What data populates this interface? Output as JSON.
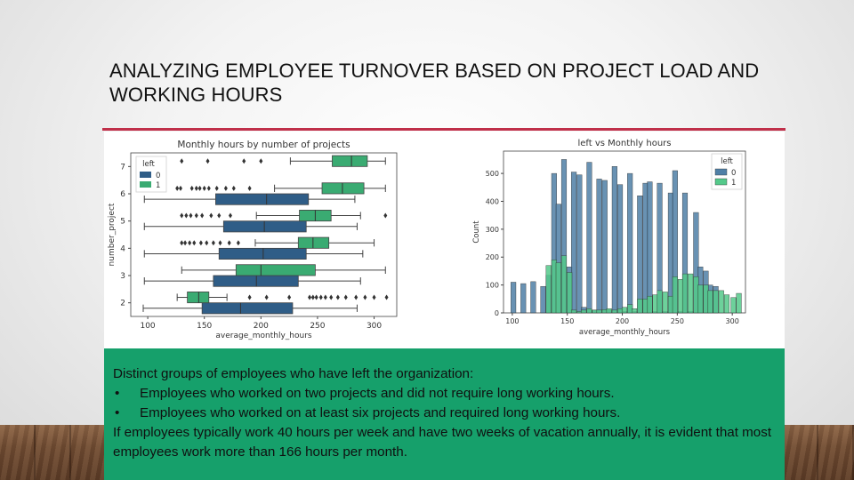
{
  "slide": {
    "title": "ANALYZING EMPLOYEE TURNOVER BASED ON PROJECT LOAD AND WORKING HOURS",
    "accent_color": "#c0304a",
    "box_color": "#16a06b",
    "intro": "Distinct groups of employees who have left the organization:",
    "bullets": [
      "Employees who worked on two projects and did not require long working hours.",
      "Employees who worked on at least six projects and required long working hours."
    ],
    "conclusion": "If employees typically work 40 hours per week and have two weeks of vacation annually, it is evident that most employees work more than 166 hours per month.",
    "bullet_glyph": "•"
  },
  "chart_data": [
    {
      "type": "box",
      "orientation": "horizontal",
      "title": "Monthly hours by number of projects",
      "xlabel": "average_monthly_hours",
      "ylabel": "number_project",
      "xlim": [
        85,
        320
      ],
      "xticks": [
        100,
        150,
        200,
        250,
        300
      ],
      "categories": [
        7,
        6,
        5,
        4,
        3,
        2
      ],
      "legend": {
        "title": "left",
        "position": "top-left",
        "entries": [
          "0",
          "1"
        ]
      },
      "colors": {
        "0": "#2f5d87",
        "1": "#3aab72"
      },
      "series": [
        {
          "name": "0",
          "boxes": [
            {
              "category": 6,
              "whisker_low": 97,
              "q1": 160,
              "median": 205,
              "q3": 242,
              "whisker_high": 283
            },
            {
              "category": 5,
              "whisker_low": 97,
              "q1": 167,
              "median": 203,
              "q3": 240,
              "whisker_high": 285
            },
            {
              "category": 4,
              "whisker_low": 97,
              "q1": 163,
              "median": 202,
              "q3": 240,
              "whisker_high": 290
            },
            {
              "category": 3,
              "whisker_low": 97,
              "q1": 158,
              "median": 196,
              "q3": 233,
              "whisker_high": 288
            },
            {
              "category": 2,
              "whisker_low": 96,
              "q1": 148,
              "median": 182,
              "q3": 228,
              "whisker_high": 285
            }
          ]
        },
        {
          "name": "1",
          "boxes": [
            {
              "category": 7,
              "whisker_low": 226,
              "q1": 263,
              "median": 280,
              "q3": 294,
              "whisker_high": 310,
              "outliers": [
                130,
                153,
                185,
                200
              ]
            },
            {
              "category": 6,
              "whisker_low": 212,
              "q1": 254,
              "median": 272,
              "q3": 291,
              "whisker_high": 310,
              "outliers": [
                126,
                129,
                139,
                143,
                146,
                150,
                154,
                161,
                169,
                176,
                190
              ]
            },
            {
              "category": 5,
              "whisker_low": 196,
              "q1": 234,
              "median": 248,
              "q3": 262,
              "whisker_high": 288,
              "outliers": [
                130,
                134,
                138,
                143,
                148,
                156,
                163,
                173,
                310
              ]
            },
            {
              "category": 4,
              "whisker_low": 195,
              "q1": 233,
              "median": 246,
              "q3": 260,
              "whisker_high": 300,
              "outliers": [
                130,
                133,
                137,
                141,
                147,
                152,
                158,
                164,
                172,
                180
              ]
            },
            {
              "category": 3,
              "whisker_low": 130,
              "q1": 178,
              "median": 200,
              "q3": 248,
              "whisker_high": 310
            },
            {
              "category": 2,
              "whisker_low": 126,
              "q1": 135,
              "median": 145,
              "q3": 154,
              "whisker_high": 170,
              "outliers": [
                190,
                205,
                225,
                243,
                246,
                249,
                253,
                257,
                262,
                268,
                275,
                284,
                292,
                300,
                311
              ]
            }
          ]
        }
      ]
    },
    {
      "type": "bar",
      "title": "left vs Monthly hours",
      "xlabel": "average_monthly_hours",
      "ylabel": "Count",
      "xlim": [
        92,
        312
      ],
      "ylim": [
        0,
        580
      ],
      "xticks": [
        100,
        150,
        200,
        250,
        300
      ],
      "yticks": [
        0,
        100,
        200,
        300,
        400,
        500
      ],
      "legend": {
        "title": "left",
        "position": "top-right",
        "entries": [
          "0",
          "1"
        ]
      },
      "colors": {
        "0": "#4f7fa6",
        "1": "#54c98a"
      },
      "bin_width": 4.6,
      "series": [
        {
          "name": "0",
          "x": [
            101,
            110,
            119,
            128,
            133,
            138,
            142,
            147,
            152,
            156,
            161,
            165,
            170,
            175,
            179,
            184,
            188,
            193,
            198,
            202,
            207,
            211,
            216,
            221,
            225,
            230,
            234,
            239,
            244,
            248,
            253,
            257,
            262,
            267,
            271,
            276,
            280,
            285
          ],
          "values": [
            110,
            105,
            112,
            95,
            135,
            500,
            390,
            550,
            165,
            505,
            495,
            20,
            540,
            10,
            480,
            475,
            10,
            525,
            460,
            5,
            500,
            5,
            420,
            465,
            470,
            5,
            465,
            5,
            430,
            510,
            5,
            430,
            5,
            360,
            165,
            150,
            100,
            95
          ]
        },
        {
          "name": "1",
          "x": [
            133,
            138,
            142,
            147,
            152,
            156,
            161,
            165,
            170,
            175,
            179,
            184,
            188,
            193,
            198,
            202,
            207,
            211,
            216,
            221,
            225,
            230,
            234,
            239,
            244,
            248,
            253,
            257,
            262,
            267,
            271,
            276,
            280,
            285,
            290,
            295,
            301,
            306
          ],
          "values": [
            170,
            190,
            180,
            205,
            145,
            10,
            5,
            10,
            15,
            10,
            10,
            12,
            15,
            10,
            15,
            20,
            30,
            15,
            50,
            50,
            60,
            65,
            80,
            75,
            60,
            130,
            120,
            140,
            140,
            130,
            100,
            100,
            80,
            80,
            80,
            65,
            55,
            70
          ]
        }
      ]
    }
  ]
}
